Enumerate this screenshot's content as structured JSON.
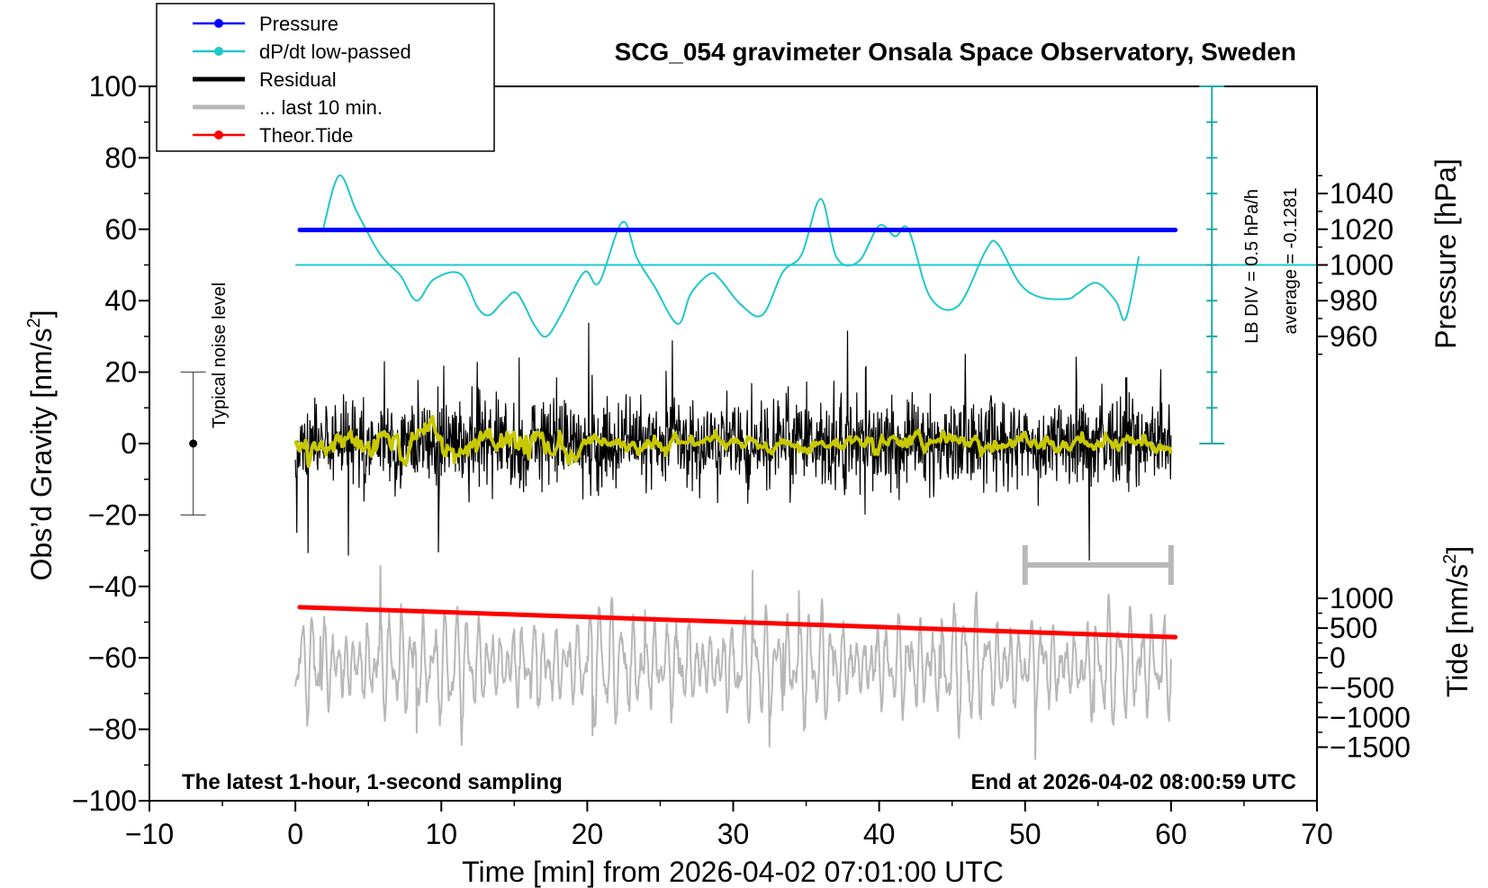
{
  "chart_data": {
    "type": "line",
    "title": "SCG_054 gravimeter Onsala Space Observatory, Sweden",
    "xlabel": "Time [min] from 2026-04-02 07:01:00 UTC",
    "ylabel_main": "Obs’d Gravity [nm/s",
    "ylabel_sup": "2",
    "ylabel_main_close": "]",
    "ylabel_pressure": "Pressure [hPa]",
    "ylabel_tide": "Tide [nm/s",
    "ylabel_tide_sup": "2",
    "ylabel_tide_close": "]",
    "xlim": [
      -10,
      70
    ],
    "ylim": [
      -100,
      100
    ],
    "pressure_range": [
      920,
      1060
    ],
    "tide_range": [
      -1500,
      1500
    ],
    "x_ticks": [
      -10,
      0,
      10,
      20,
      30,
      40,
      50,
      60,
      70
    ],
    "x_tick_labels": [
      "−10",
      "0",
      "10",
      "20",
      "30",
      "40",
      "50",
      "60",
      "70"
    ],
    "y_ticks": [
      -100,
      -80,
      -60,
      -40,
      -20,
      0,
      20,
      40,
      60,
      80,
      100
    ],
    "y_tick_labels": [
      "−100",
      "−80",
      "−60",
      "−40",
      "−20",
      "0",
      "20",
      "40",
      "60",
      "80",
      "100"
    ],
    "pressure_ticks": [
      960,
      980,
      1000,
      1020,
      1040
    ],
    "pressure_tick_labels": [
      "960",
      "980",
      "1000",
      "1020",
      "1040"
    ],
    "tide_ticks": [
      -1500,
      -1000,
      -500,
      0,
      500,
      1000
    ],
    "tide_tick_labels": [
      "−1500",
      "−1000",
      "−500",
      "0",
      "500",
      "1000"
    ],
    "legend": [
      {
        "label": "Pressure",
        "color": "#0000ff",
        "marker": true
      },
      {
        "label": "dP/dt low-passed",
        "color": "#20c8c8",
        "marker": true
      },
      {
        "label": "Residual",
        "color": "#000000",
        "marker": false
      },
      {
        "label": "... last 10 min.",
        "color": "#b8b8b8",
        "marker": false
      },
      {
        "label": "Theor.Tide",
        "color": "#ff0000",
        "marker": true
      }
    ],
    "legend_position": "top-left",
    "annotations": {
      "noise_label": "Typical noise level",
      "noise_center": 0,
      "noise_range": [
        -20,
        20
      ],
      "noise_x": -7,
      "lb_div": "LB DIV = 0.5 hPa/h",
      "average": "average = -0.1281",
      "bottom_left": "The latest 1-hour, 1-second sampling",
      "bottom_right": "End at 2026-04-02 08:00:59 UTC"
    },
    "scale_bar_minutes": [
      50,
      60
    ],
    "scale_bar_y": -34,
    "dpdt_reference_y": 50,
    "series": [
      {
        "name": "Pressure",
        "color": "#0000ff",
        "x": [
          0.3,
          60.3
        ],
        "y": [
          59.8,
          59.8
        ]
      },
      {
        "name": "dP/dt low-passed",
        "color": "#20c8c8",
        "x": [
          1.9,
          3.0,
          4.2,
          5.8,
          7.2,
          8.3,
          9.5,
          11.3,
          12.5,
          13.3,
          14.3,
          15.2,
          16.4,
          17.2,
          18.2,
          19.8,
          20.8,
          22.4,
          23.4,
          24.6,
          26.2,
          27.1,
          28.4,
          29.1,
          30.5,
          32.0,
          33.4,
          34.7,
          36.0,
          37.1,
          38.6,
          40.0,
          41.1,
          42.0,
          43.5,
          45.4,
          47.3,
          48.1,
          49.6,
          51.0,
          52.9,
          53.6,
          54.9,
          56.2,
          56.9,
          57.8
        ],
        "y": [
          60.0,
          75.0,
          65.0,
          53.0,
          47.0,
          40.0,
          46.0,
          47.5,
          38.0,
          36.0,
          40.0,
          42.0,
          33.0,
          30.0,
          36.0,
          48.0,
          45.0,
          62.0,
          52.0,
          44.0,
          33.5,
          42.0,
          47.5,
          46.0,
          39.0,
          36.0,
          48.0,
          53.0,
          68.5,
          52.0,
          51.0,
          61.0,
          58.0,
          60.0,
          41.0,
          38.5,
          54.0,
          56.0,
          45.0,
          41.0,
          40.5,
          42.0,
          45.0,
          40.0,
          35.0,
          52.5
        ]
      },
      {
        "name": "Residual",
        "color": "#000000",
        "x": [
          0,
          60
        ],
        "y": [
          0,
          0
        ]
      },
      {
        "name": "Residual smoothed",
        "color": "#c8c800",
        "x": [
          0,
          60
        ],
        "y": [
          0,
          0
        ]
      },
      {
        "name": "... last 10 min.",
        "color": "#b8b8b8",
        "x": [
          0,
          60
        ],
        "y": [
          -62,
          -62
        ]
      },
      {
        "name": "Theor.Tide",
        "color": "#ff0000",
        "x": [
          0.3,
          60.3
        ],
        "y": [
          -45.8,
          -54.2
        ]
      }
    ]
  }
}
